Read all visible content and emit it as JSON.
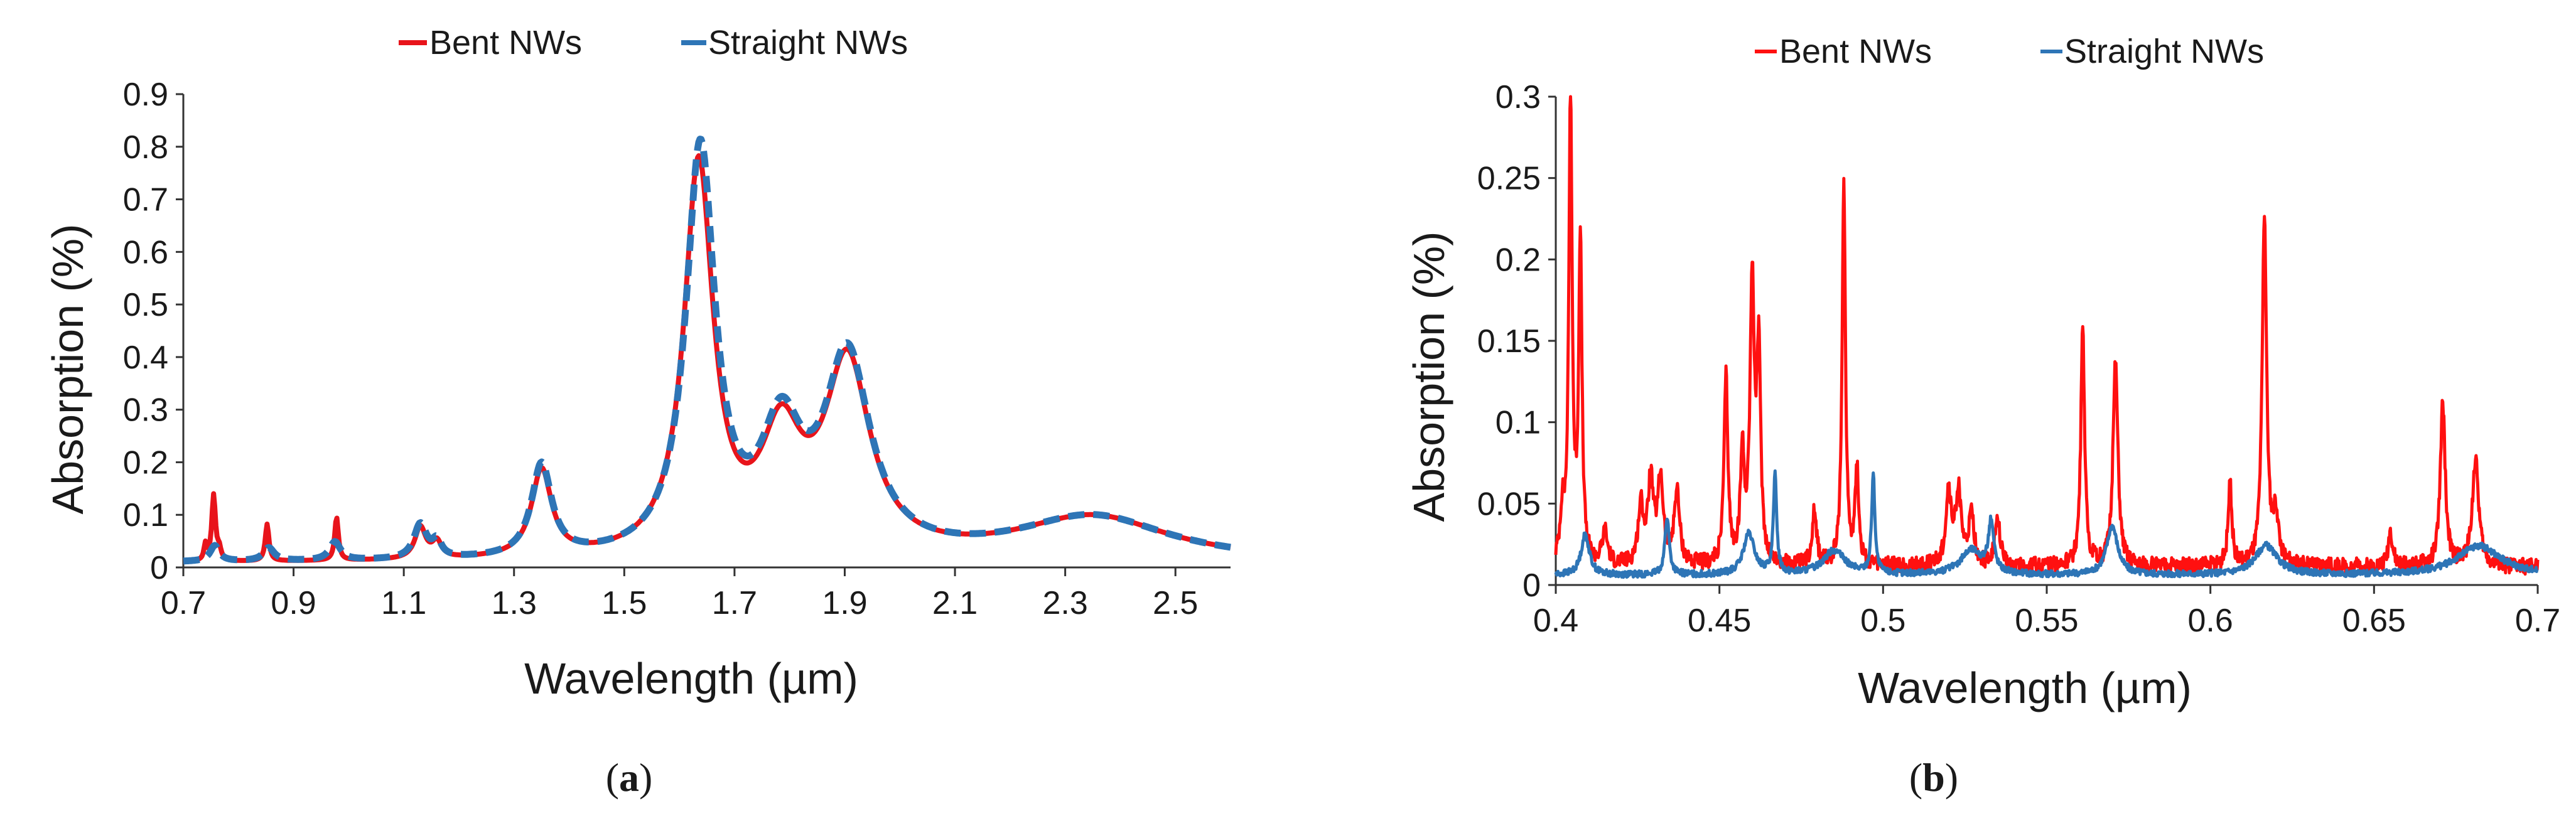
{
  "chart_data": [
    {
      "panel": "a",
      "type": "line",
      "panel_label": {
        "open": "(",
        "letter": "a",
        "close": ")"
      },
      "xlabel": "Wavelength (µm)",
      "ylabel": "Absorption  (%)",
      "xlim": [
        0.7,
        2.6
      ],
      "ylim": [
        0,
        0.9
      ],
      "xticks": [
        0.7,
        0.9,
        1.1,
        1.3,
        1.5,
        1.7,
        1.9,
        2.1,
        2.3,
        2.5
      ],
      "xtick_labels": [
        "0.7",
        "0.9",
        "1.1",
        "1.3",
        "1.5",
        "1.7",
        "1.9",
        "2.1",
        "2.3",
        "2.5"
      ],
      "yticks": [
        0,
        0.1,
        0.2,
        0.3,
        0.4,
        0.5,
        0.6,
        0.7,
        0.8,
        0.9
      ],
      "ytick_labels": [
        "0",
        "0.1",
        "0.2",
        "0.3",
        "0.4",
        "0.5",
        "0.6",
        "0.7",
        "0.8",
        "0.9"
      ],
      "legend": {
        "placement": "top-center"
      },
      "series": [
        {
          "name": "Bent NWs",
          "color": "#e8141b",
          "style": "solid",
          "peaks": [
            {
              "center": 0.755,
              "height": 0.125,
              "width": 0.004
            },
            {
              "center": 0.74,
              "height": 0.03,
              "width": 0.003
            },
            {
              "center": 0.765,
              "height": 0.02,
              "width": 0.004
            },
            {
              "center": 0.852,
              "height": 0.07,
              "width": 0.004
            },
            {
              "center": 0.978,
              "height": 0.082,
              "width": 0.004
            },
            {
              "center": 1.13,
              "height": 0.06,
              "width": 0.012
            },
            {
              "center": 1.16,
              "height": 0.03,
              "width": 0.01
            },
            {
              "center": 1.35,
              "height": 0.165,
              "width": 0.022
            },
            {
              "center": 1.635,
              "height": 0.74,
              "width": 0.032
            },
            {
              "center": 1.785,
              "height": 0.21,
              "width": 0.045
            },
            {
              "center": 1.905,
              "height": 0.36,
              "width": 0.05
            },
            {
              "center": 2.35,
              "height": 0.085,
              "width": 0.17
            }
          ],
          "baseline": 0.008
        },
        {
          "name": "Straight NWs",
          "color": "#2e75b6",
          "style": "dashed",
          "peaks": [
            {
              "center": 0.757,
              "height": 0.03,
              "width": 0.01
            },
            {
              "center": 0.855,
              "height": 0.025,
              "width": 0.012
            },
            {
              "center": 0.975,
              "height": 0.035,
              "width": 0.012
            },
            {
              "center": 1.13,
              "height": 0.065,
              "width": 0.014
            },
            {
              "center": 1.16,
              "height": 0.03,
              "width": 0.01
            },
            {
              "center": 1.35,
              "height": 0.175,
              "width": 0.022
            },
            {
              "center": 1.638,
              "height": 0.77,
              "width": 0.032
            },
            {
              "center": 1.785,
              "height": 0.22,
              "width": 0.045
            },
            {
              "center": 1.905,
              "height": 0.37,
              "width": 0.05
            },
            {
              "center": 2.35,
              "height": 0.085,
              "width": 0.17
            }
          ],
          "baseline": 0.008
        }
      ]
    },
    {
      "panel": "b",
      "type": "line",
      "panel_label": {
        "open": "(",
        "letter": "b",
        "close": ")"
      },
      "xlabel": "Wavelength (µm)",
      "ylabel": "Absorption  (%)",
      "xlim": [
        0.4,
        0.7
      ],
      "ylim": [
        0,
        0.3
      ],
      "xticks": [
        0.4,
        0.45,
        0.5,
        0.55,
        0.6,
        0.65,
        0.7
      ],
      "xtick_labels": [
        "0.4",
        "0.45",
        "0.5",
        "0.55",
        "0.6",
        "0.65",
        "0.7"
      ],
      "yticks": [
        0,
        0.05,
        0.1,
        0.15,
        0.2,
        0.25,
        0.3
      ],
      "ytick_labels": [
        "0",
        "0.05",
        "0.1",
        "0.15",
        "0.2",
        "0.25",
        "0.3"
      ],
      "legend": {
        "placement": "top-center"
      },
      "series": [
        {
          "name": "Bent NWs",
          "color": "#ff1010",
          "style": "solid",
          "baseline": 0.006,
          "noise": 0.01,
          "peaks": [
            {
              "center": 0.4045,
              "height": 0.29,
              "width": 0.0006
            },
            {
              "center": 0.4075,
              "height": 0.2,
              "width": 0.0006
            },
            {
              "center": 0.402,
              "height": 0.03,
              "width": 0.0008
            },
            {
              "center": 0.415,
              "height": 0.02,
              "width": 0.001
            },
            {
              "center": 0.426,
              "height": 0.035,
              "width": 0.001
            },
            {
              "center": 0.429,
              "height": 0.05,
              "width": 0.001
            },
            {
              "center": 0.432,
              "height": 0.052,
              "width": 0.001
            },
            {
              "center": 0.437,
              "height": 0.045,
              "width": 0.001
            },
            {
              "center": 0.452,
              "height": 0.115,
              "width": 0.0007
            },
            {
              "center": 0.457,
              "height": 0.065,
              "width": 0.0007
            },
            {
              "center": 0.46,
              "height": 0.17,
              "width": 0.0008
            },
            {
              "center": 0.462,
              "height": 0.125,
              "width": 0.0007
            },
            {
              "center": 0.479,
              "height": 0.035,
              "width": 0.0008
            },
            {
              "center": 0.488,
              "height": 0.238,
              "width": 0.0006
            },
            {
              "center": 0.492,
              "height": 0.058,
              "width": 0.0007
            },
            {
              "center": 0.52,
              "height": 0.045,
              "width": 0.001
            },
            {
              "center": 0.523,
              "height": 0.045,
              "width": 0.001
            },
            {
              "center": 0.527,
              "height": 0.03,
              "width": 0.001
            },
            {
              "center": 0.535,
              "height": 0.028,
              "width": 0.001
            },
            {
              "center": 0.561,
              "height": 0.145,
              "width": 0.0007
            },
            {
              "center": 0.571,
              "height": 0.125,
              "width": 0.0009
            },
            {
              "center": 0.606,
              "height": 0.05,
              "width": 0.0007
            },
            {
              "center": 0.6165,
              "height": 0.215,
              "width": 0.0008
            },
            {
              "center": 0.62,
              "height": 0.03,
              "width": 0.001
            },
            {
              "center": 0.655,
              "height": 0.022,
              "width": 0.0008
            },
            {
              "center": 0.671,
              "height": 0.1,
              "width": 0.0009
            },
            {
              "center": 0.681,
              "height": 0.065,
              "width": 0.0012
            }
          ]
        },
        {
          "name": "Straight NWs",
          "color": "#2e75b6",
          "style": "solid",
          "baseline": 0.004,
          "noise": 0.004,
          "peaks": [
            {
              "center": 0.409,
              "height": 0.025,
              "width": 0.0015
            },
            {
              "center": 0.434,
              "height": 0.035,
              "width": 0.0008
            },
            {
              "center": 0.459,
              "height": 0.025,
              "width": 0.002
            },
            {
              "center": 0.467,
              "height": 0.06,
              "width": 0.0006
            },
            {
              "center": 0.485,
              "height": 0.015,
              "width": 0.004
            },
            {
              "center": 0.497,
              "height": 0.06,
              "width": 0.0006
            },
            {
              "center": 0.527,
              "height": 0.015,
              "width": 0.004
            },
            {
              "center": 0.533,
              "height": 0.03,
              "width": 0.001
            },
            {
              "center": 0.57,
              "height": 0.03,
              "width": 0.002
            },
            {
              "center": 0.617,
              "height": 0.018,
              "width": 0.004
            },
            {
              "center": 0.682,
              "height": 0.018,
              "width": 0.008
            }
          ]
        }
      ]
    }
  ]
}
